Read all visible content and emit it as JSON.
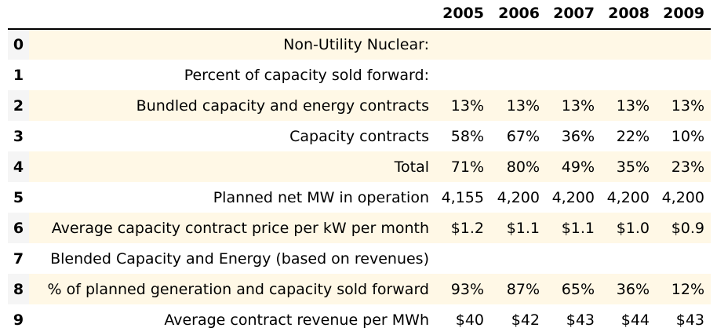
{
  "table": {
    "columns": [
      "2005",
      "2006",
      "2007",
      "2008",
      "2009"
    ],
    "rows": [
      {
        "index": "0",
        "label": "Non-Utility Nuclear:",
        "values": [
          "",
          "",
          "",
          "",
          ""
        ]
      },
      {
        "index": "1",
        "label": "Percent of capacity sold forward:",
        "values": [
          "",
          "",
          "",
          "",
          ""
        ]
      },
      {
        "index": "2",
        "label": "Bundled capacity and energy contracts",
        "values": [
          "13%",
          "13%",
          "13%",
          "13%",
          "13%"
        ]
      },
      {
        "index": "3",
        "label": "Capacity contracts",
        "values": [
          "58%",
          "67%",
          "36%",
          "22%",
          "10%"
        ]
      },
      {
        "index": "4",
        "label": "Total",
        "values": [
          "71%",
          "80%",
          "49%",
          "35%",
          "23%"
        ]
      },
      {
        "index": "5",
        "label": "Planned net MW in operation",
        "values": [
          "4,155",
          "4,200",
          "4,200",
          "4,200",
          "4,200"
        ]
      },
      {
        "index": "6",
        "label": "Average capacity contract price per kW per month",
        "values": [
          "$1.2",
          "$1.1",
          "$1.1",
          "$1.0",
          "$0.9"
        ]
      },
      {
        "index": "7",
        "label": "Blended Capacity and Energy (based on revenues)",
        "values": [
          "",
          "",
          "",
          "",
          ""
        ]
      },
      {
        "index": "8",
        "label": "% of planned generation and capacity sold forward",
        "values": [
          "93%",
          "87%",
          "65%",
          "36%",
          "12%"
        ]
      },
      {
        "index": "9",
        "label": "Average contract revenue per MWh",
        "values": [
          "$40",
          "$42",
          "$43",
          "$44",
          "$43"
        ]
      }
    ]
  },
  "colors": {
    "stripe": "#fff8e6",
    "index_bg": "#f5f5f5",
    "header_rule": "#000000"
  }
}
